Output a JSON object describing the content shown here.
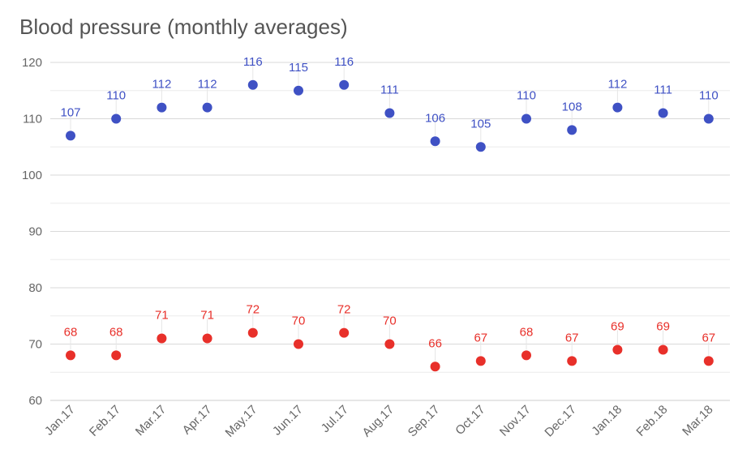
{
  "chart_data": {
    "type": "scatter",
    "title": "Blood pressure (monthly averages)",
    "categories": [
      "Jan.17",
      "Feb.17",
      "Mar.17",
      "Apr.17",
      "May.17",
      "Jun.17",
      "Jul.17",
      "Aug.17",
      "Sep.17",
      "Oct.17",
      "Nov.17",
      "Dec.17",
      "Jan.18",
      "Feb.18",
      "Mar.18"
    ],
    "series": [
      {
        "values": [
          107,
          110,
          112,
          112,
          116,
          115,
          116,
          111,
          106,
          105,
          110,
          108,
          112,
          111,
          110
        ],
        "color": "#3f51c4"
      },
      {
        "values": [
          68,
          68,
          71,
          71,
          72,
          70,
          72,
          70,
          66,
          67,
          68,
          67,
          69,
          69,
          67
        ],
        "color": "#e8302a"
      }
    ],
    "ylim": [
      60,
      120
    ],
    "yticks": [
      60,
      70,
      80,
      90,
      100,
      110,
      120
    ],
    "grid": true,
    "minor_grid": true
  }
}
